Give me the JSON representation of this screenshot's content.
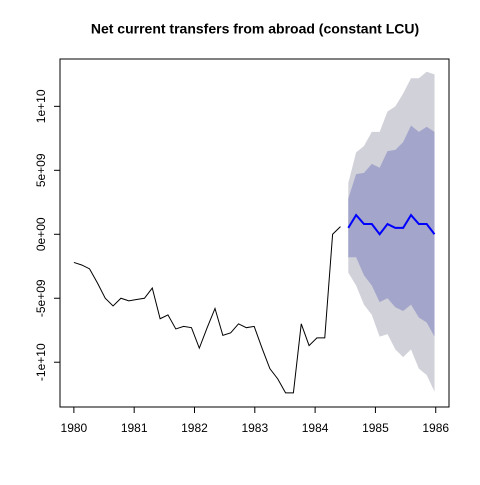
{
  "chart_data": {
    "type": "forecast",
    "title": "Net current transfers from abroad (constant LCU)",
    "xlim": [
      1979.77,
      1986.22
    ],
    "xticks": [
      1980,
      1981,
      1982,
      1983,
      1984,
      1985,
      1986
    ],
    "ylim": [
      -13500000000.0,
      13700000000.0
    ],
    "yticks": [
      {
        "value": -10000000000.0,
        "label": "-1e+10"
      },
      {
        "value": -5000000000.0,
        "label": "-5e+09"
      },
      {
        "value": 0,
        "label": "0e+00"
      },
      {
        "value": 5000000000.0,
        "label": "5e+09"
      },
      {
        "value": 10000000000.0,
        "label": "1e+10"
      }
    ],
    "series": [
      {
        "color": "#000000",
        "x": [
          1980,
          1980.13,
          1980.26,
          1980.39,
          1980.52,
          1980.65,
          1980.78,
          1980.91,
          1981.04,
          1981.17,
          1981.3,
          1981.43,
          1981.56,
          1981.69,
          1981.82,
          1981.95,
          1982.08,
          1982.21,
          1982.34,
          1982.47,
          1982.6,
          1982.73,
          1982.86,
          1982.99,
          1983.12,
          1983.25,
          1983.38,
          1983.51,
          1983.64,
          1983.77,
          1983.9,
          1984.03,
          1984.16,
          1984.29,
          1984.42
        ],
        "values": [
          -2200000000.0,
          -2400000000.0,
          -2700000000.0,
          -3800000000.0,
          -5000000000.0,
          -5600000000.0,
          -5000000000.0,
          -5200000000.0,
          -5100000000.0,
          -5000000000.0,
          -4200000000.0,
          -6600000000.0,
          -6300000000.0,
          -7400000000.0,
          -7200000000.0,
          -7300000000.0,
          -8900000000.0,
          -7300000000.0,
          -5800000000.0,
          -7900000000.0,
          -7700000000.0,
          -7000000000.0,
          -7300000000.0,
          -7200000000.0,
          -8900000000.0,
          -10500000000.0,
          -11300000000.0,
          -12400000000.0,
          -12400000000.0,
          -7000000000.0,
          -8700000000.0,
          -8100000000.0,
          -8100000000.0,
          0,
          600000000.0
        ]
      },
      {
        "color": "#0000ff",
        "x": [
          1984.55,
          1984.68,
          1984.81,
          1984.94,
          1985.07,
          1985.2,
          1985.33,
          1985.46,
          1985.59,
          1985.72,
          1985.85,
          1985.98
        ],
        "values": [
          500000000.0,
          1500000000.0,
          800000000.0,
          800000000.0,
          0,
          800000000.0,
          500000000.0,
          500000000.0,
          1500000000.0,
          800000000.0,
          800000000.0,
          0
        ]
      }
    ],
    "bands": [
      {
        "color": "#d1d1d9",
        "lower": [
          -3000000000.0,
          -4000000000.0,
          -5500000000.0,
          -6300000000.0,
          -8000000000.0,
          -7800000000.0,
          -9000000000.0,
          -9600000000.0,
          -9000000000.0,
          -10500000000.0,
          -11000000000.0,
          -12300000000.0
        ],
        "upper": [
          4000000000.0,
          6400000000.0,
          6900000000.0,
          8000000000.0,
          8000000000.0,
          9600000000.0,
          10000000000.0,
          11000000000.0,
          12200000000.0,
          12200000000.0,
          12700000000.0,
          12500000000.0
        ]
      },
      {
        "color": "#a3a5cb",
        "lower": [
          -1800000000.0,
          -1800000000.0,
          -3200000000.0,
          -4000000000.0,
          -5300000000.0,
          -5000000000.0,
          -5700000000.0,
          -6000000000.0,
          -5500000000.0,
          -6500000000.0,
          -6900000000.0,
          -8000000000.0
        ],
        "upper": [
          2800000000.0,
          4700000000.0,
          4800000000.0,
          5500000000.0,
          5200000000.0,
          6500000000.0,
          6600000000.0,
          7200000000.0,
          8500000000.0,
          8000000000.0,
          8400000000.0,
          8000000000.0
        ]
      }
    ]
  }
}
